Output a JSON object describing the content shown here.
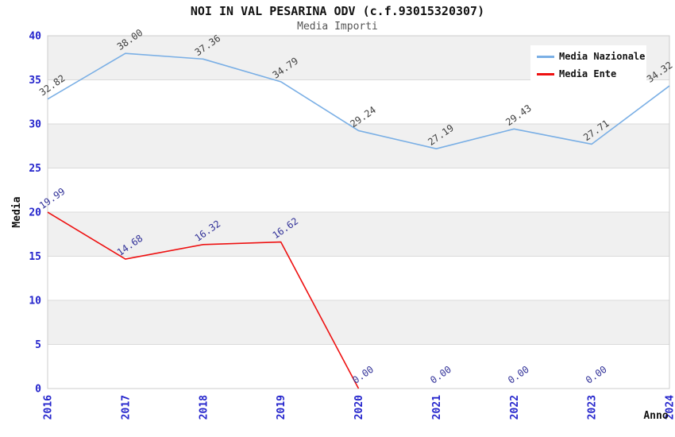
{
  "chart_data": {
    "type": "line",
    "title": "NOI IN VAL PESARINA ODV (c.f.93015320307)",
    "subtitle": "Media Importi",
    "xlabel": "Anno",
    "ylabel": "Media",
    "categories": [
      "2016",
      "2017",
      "2018",
      "2019",
      "2020",
      "2021",
      "2022",
      "2023",
      "2024"
    ],
    "series": [
      {
        "name": "Media Nazionale",
        "color": "#7AAFE5",
        "label_color": "#404040",
        "values": [
          32.82,
          38.0,
          37.36,
          34.79,
          29.24,
          27.19,
          29.43,
          27.71,
          34.32
        ]
      },
      {
        "name": "Media Ente",
        "color": "#EE1111",
        "label_color": "#333399",
        "values": [
          19.99,
          14.68,
          16.32,
          16.62,
          0.0,
          0.0,
          0.0,
          0.0,
          null
        ],
        "line_end_index": 4
      }
    ],
    "ylim": [
      0,
      40
    ],
    "ytick_step": 5,
    "grid": "horizontal-bands",
    "legend_position": "top-right",
    "colors": {
      "band": "#F0F0F0",
      "gridline": "#DADADA",
      "plot_border": "#CCCCCC",
      "tick_label": "#2424CC",
      "axis_title": "#111111",
      "title": "#111111",
      "subtitle": "#555555",
      "legend_bg": "#FFFFFF"
    }
  }
}
